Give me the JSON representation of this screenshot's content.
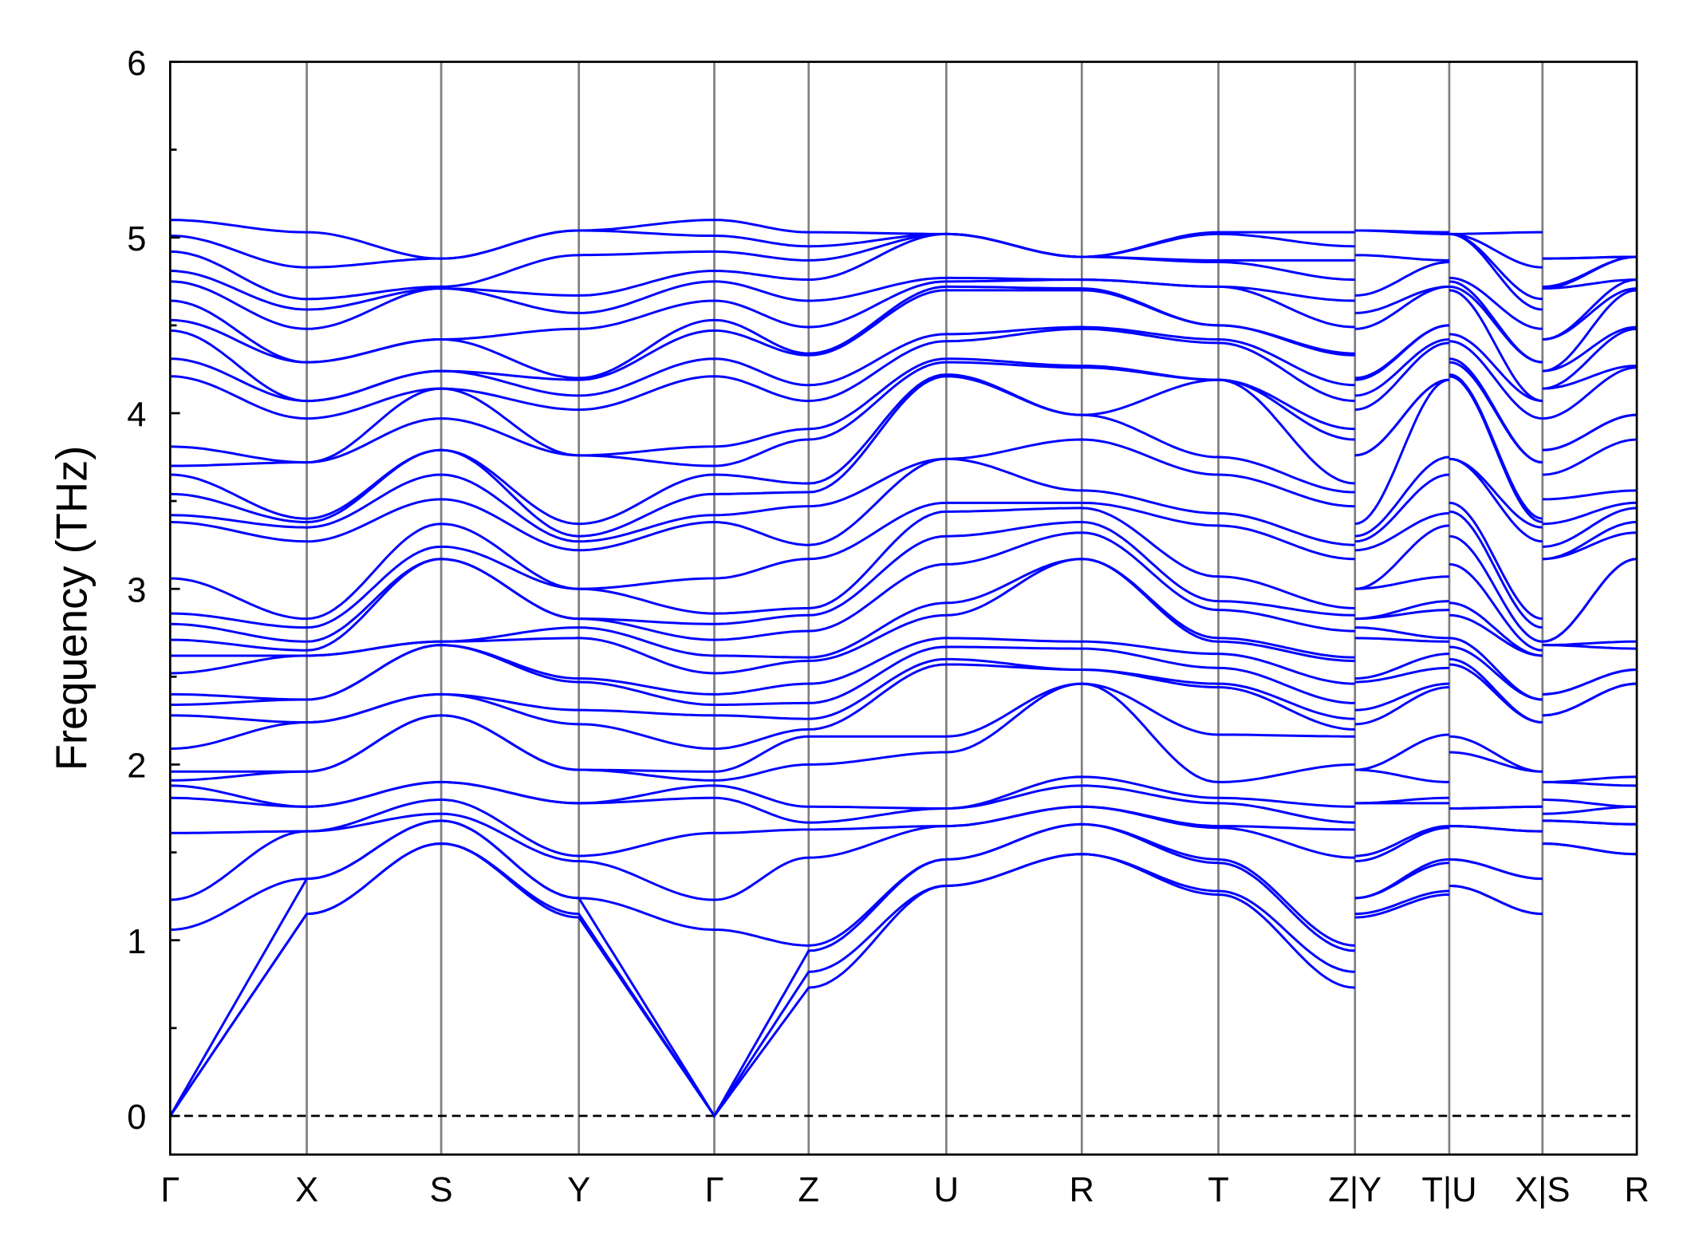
{
  "chart_data": {
    "type": "line",
    "title": "",
    "xlabel": "",
    "ylabel": "Frequency (THz)",
    "ylim": [
      -0.22,
      6
    ],
    "yticks": [
      0,
      1,
      2,
      3,
      4,
      5,
      6
    ],
    "grid": false,
    "line_color": "#0000ff",
    "zero_line": {
      "value": 0,
      "style": "dashed",
      "color": "#000000"
    },
    "xticks": [
      {
        "label": "Γ",
        "x": 0.0
      },
      {
        "label": "X",
        "x": 1.26
      },
      {
        "label": "S",
        "x": 2.5
      },
      {
        "label": "Y",
        "x": 3.77
      },
      {
        "label": "Γ",
        "x": 5.02
      },
      {
        "label": "Z",
        "x": 5.89
      },
      {
        "label": "U",
        "x": 7.16
      },
      {
        "label": "R",
        "x": 8.41
      },
      {
        "label": "T",
        "x": 9.67
      },
      {
        "label": "Z|Y",
        "x": 10.93
      },
      {
        "label": "T|U",
        "x": 11.8
      },
      {
        "label": "X|S",
        "x": 12.66
      },
      {
        "label": "R",
        "x": 13.53
      }
    ],
    "xlim": [
      0,
      13.53
    ],
    "kpoint_frequencies": {
      "Γ": [
        0,
        0,
        0,
        1.06,
        1.23,
        1.61,
        1.81,
        1.88,
        1.91,
        1.96,
        2.09,
        2.28,
        2.34,
        2.4,
        2.52,
        2.62,
        2.71,
        2.8,
        2.86,
        3.06,
        3.38,
        3.42,
        3.54,
        3.65,
        3.7,
        3.81,
        4.21,
        4.31,
        4.47,
        4.53,
        4.64,
        4.75,
        4.81,
        4.92,
        5.01,
        5.1
      ],
      "X": [
        1.15,
        1.15,
        1.35,
        1.35,
        1.62,
        1.62,
        1.76,
        1.76,
        1.96,
        1.96,
        2.24,
        2.24,
        2.37,
        2.37,
        2.62,
        2.62,
        2.65,
        2.7,
        2.78,
        2.83,
        3.27,
        3.35,
        3.38,
        3.4,
        3.72,
        3.72,
        3.97,
        4.07,
        4.07,
        4.29,
        4.29,
        4.48,
        4.59,
        4.65,
        4.83,
        5.03
      ],
      "S": [
        1.55,
        1.55,
        1.68,
        1.68,
        1.72,
        1.8,
        1.9,
        1.9,
        2.28,
        2.28,
        2.4,
        2.4,
        2.68,
        2.68,
        2.7,
        2.7,
        3.17,
        3.17,
        3.24,
        3.37,
        3.51,
        3.65,
        3.79,
        3.79,
        3.97,
        4.14,
        4.14,
        4.24,
        4.24,
        4.42,
        4.42,
        4.71,
        4.71,
        4.72,
        4.88,
        4.88
      ],
      "Y": [
        1.13,
        1.15,
        1.24,
        1.24,
        1.45,
        1.48,
        1.78,
        1.78,
        1.97,
        1.97,
        2.23,
        2.31,
        2.47,
        2.49,
        2.72,
        2.78,
        2.83,
        2.83,
        3.0,
        3.0,
        3.22,
        3.27,
        3.3,
        3.37,
        3.76,
        3.76,
        4.02,
        4.1,
        4.19,
        4.2,
        4.48,
        4.57,
        4.67,
        4.9,
        5.04,
        5.04
      ],
      "Z": [
        0.73,
        0.82,
        0.94,
        0.97,
        1.47,
        1.63,
        1.67,
        1.76,
        2.0,
        2.16,
        2.2,
        2.26,
        2.35,
        2.46,
        2.59,
        2.61,
        2.76,
        2.85,
        2.89,
        3.17,
        3.25,
        3.47,
        3.55,
        3.6,
        3.85,
        3.91,
        4.07,
        4.16,
        4.33,
        4.34,
        4.49,
        4.64,
        4.76,
        4.87,
        4.95,
        5.03
      ],
      "U": [
        1.31,
        1.31,
        1.46,
        1.46,
        1.65,
        1.65,
        1.75,
        1.75,
        2.07,
        2.16,
        2.57,
        2.6,
        2.67,
        2.72,
        2.85,
        2.92,
        3.14,
        3.3,
        3.44,
        3.49,
        3.74,
        3.74,
        4.21,
        4.22,
        4.29,
        4.31,
        4.41,
        4.45,
        4.7,
        4.72,
        4.75,
        4.77,
        5.02,
        5.02,
        5.02,
        5.02
      ],
      "R": [
        1.49,
        1.49,
        1.66,
        1.66,
        1.76,
        1.76,
        1.88,
        1.93,
        2.46,
        2.46,
        2.54,
        2.54,
        2.66,
        2.7,
        3.17,
        3.17,
        3.32,
        3.38,
        3.46,
        3.49,
        3.56,
        3.85,
        3.99,
        3.99,
        4.26,
        4.27,
        4.48,
        4.49,
        4.7,
        4.71,
        4.76,
        4.76,
        4.89,
        4.89,
        4.89,
        4.89
      ],
      "T": [
        1.26,
        1.28,
        1.44,
        1.46,
        1.64,
        1.65,
        1.78,
        1.81,
        1.9,
        2.17,
        2.44,
        2.46,
        2.55,
        2.63,
        2.7,
        2.72,
        2.88,
        2.93,
        3.07,
        3.36,
        3.43,
        3.65,
        3.75,
        4.19,
        4.19,
        4.19,
        4.4,
        4.42,
        4.5,
        4.5,
        4.72,
        4.72,
        4.86,
        4.87,
        5.02,
        5.03
      ]
    },
    "path_segments": [
      {
        "points": [
          "Γ",
          "X",
          "S",
          "Y",
          "Γ",
          "Z",
          "U",
          "R",
          "T",
          "Z"
        ],
        "x": [
          0.0,
          1.26,
          2.5,
          3.77,
          5.02,
          5.89,
          7.16,
          8.41,
          9.67,
          10.93
        ]
      },
      {
        "points": [
          "Y",
          "T"
        ],
        "x": [
          10.93,
          11.8
        ]
      },
      {
        "points": [
          "U",
          "X"
        ],
        "x": [
          11.8,
          12.66
        ]
      },
      {
        "points": [
          "S",
          "R"
        ],
        "x": [
          12.66,
          13.53
        ]
      }
    ]
  }
}
